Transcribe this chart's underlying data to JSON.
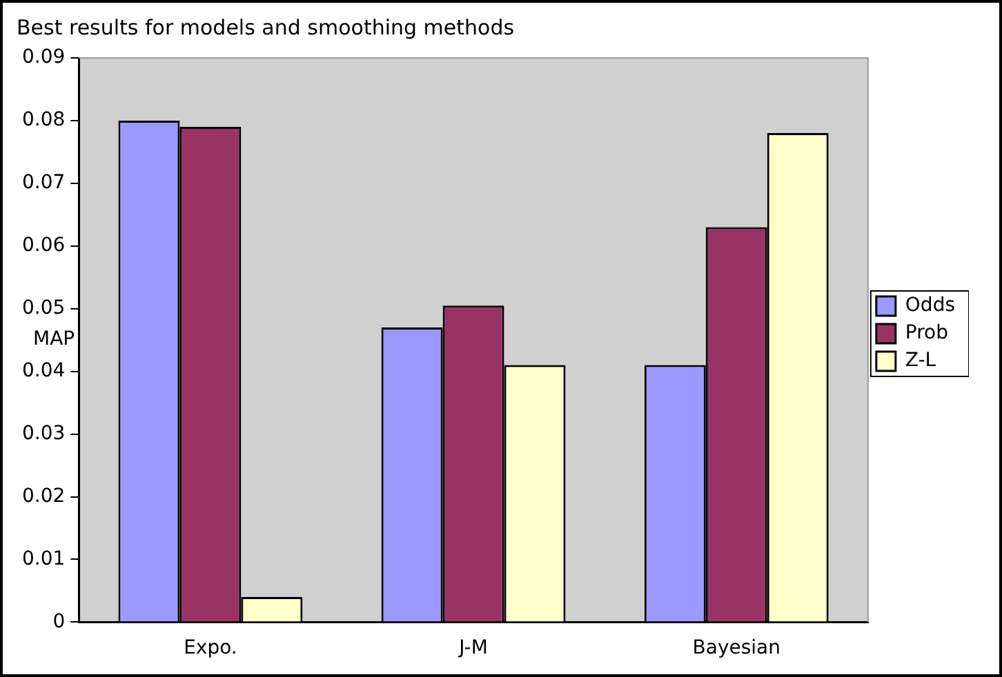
{
  "chart_data": {
    "type": "bar",
    "title": "Best results for models and smoothing methods",
    "ylabel": "MAP",
    "categories": [
      "Expo.",
      "J-M",
      "Bayesian"
    ],
    "series": [
      {
        "name": "Odds",
        "color": "#9999ff",
        "values": [
          0.08,
          0.047,
          0.041
        ]
      },
      {
        "name": "Prob",
        "color": "#993366",
        "values": [
          0.079,
          0.0505,
          0.063
        ]
      },
      {
        "name": "Z-L",
        "color": "#ffffcc",
        "values": [
          0.004,
          0.041,
          0.078
        ]
      }
    ],
    "ylim": [
      0,
      0.09
    ],
    "yticks": [
      0,
      0.01,
      0.02,
      0.03,
      0.04,
      0.05,
      0.06,
      0.07,
      0.08,
      0.09
    ],
    "grid": false,
    "legend": "right"
  }
}
